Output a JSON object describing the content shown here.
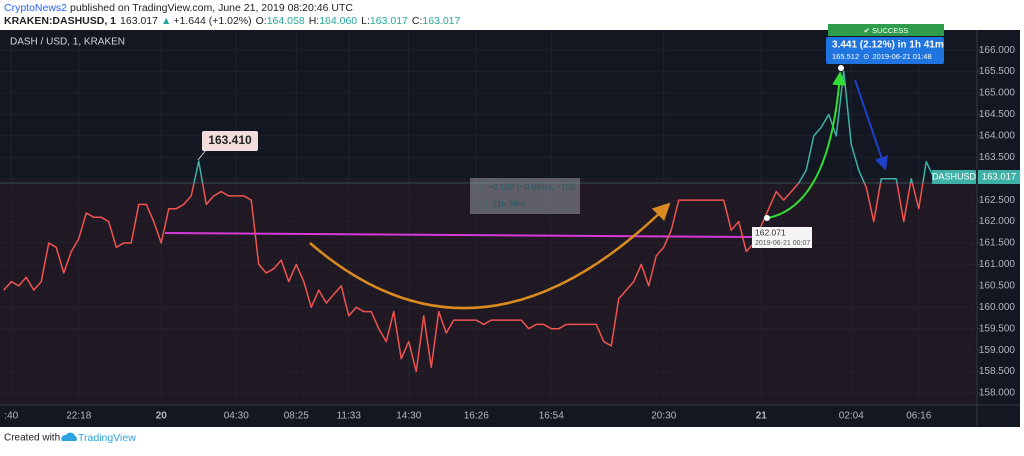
{
  "header": {
    "author": "CryptoNews2",
    "published": "published on TradingView.com, June 21, 2019 08:20:46 UTC",
    "symbol": "KRAKEN:DASHUSD, 1",
    "last": "163.017",
    "arrow": "▲",
    "change": "+1.644 (+1.02%)",
    "ohlc": [
      {
        "label": "O:",
        "value": "164.058"
      },
      {
        "label": "H:",
        "value": "164.060"
      },
      {
        "label": "L:",
        "value": "163.017"
      },
      {
        "label": "C:",
        "value": "163.017"
      }
    ]
  },
  "chart_data": {
    "type": "line",
    "title": "DASH / USD, 1, KRAKEN",
    "categories": [
      null,
      ":40",
      null,
      null,
      null,
      null,
      null,
      null,
      null,
      null,
      "22:18",
      null,
      null,
      null,
      null,
      null,
      null,
      null,
      null,
      null,
      null,
      "20",
      null,
      null,
      null,
      null,
      null,
      null,
      null,
      null,
      null,
      "04:30",
      null,
      null,
      null,
      null,
      null,
      null,
      null,
      "08:25",
      null,
      null,
      null,
      null,
      null,
      null,
      "11:33",
      null,
      null,
      null,
      null,
      null,
      null,
      null,
      "14:30",
      null,
      null,
      null,
      null,
      null,
      null,
      null,
      null,
      "16:26",
      null,
      null,
      null,
      null,
      null,
      null,
      null,
      null,
      null,
      "16:54",
      null,
      null,
      null,
      null,
      null,
      null,
      null,
      null,
      null,
      null,
      null,
      null,
      null,
      null,
      "20:30",
      null,
      null,
      null,
      null,
      null,
      null,
      null,
      null,
      null,
      null,
      null,
      null,
      "21",
      null,
      null,
      null,
      null,
      null,
      null,
      null,
      null,
      null,
      null,
      null,
      "02:04",
      null,
      null,
      null,
      null,
      null,
      null,
      null,
      null,
      "06:16",
      null,
      null,
      null,
      null,
      null,
      null,
      null
    ],
    "series": [
      {
        "name": "DASHUSD",
        "color": "#ef5350",
        "up_color": "#3fb0a5",
        "values": [
          160.4,
          160.6,
          160.5,
          160.7,
          160.4,
          160.6,
          161.5,
          161.4,
          160.8,
          161.3,
          161.6,
          162.2,
          162.1,
          162.1,
          162.0,
          161.4,
          161.5,
          161.5,
          162.4,
          162.4,
          162.0,
          161.5,
          162.3,
          162.3,
          162.4,
          162.6,
          163.41,
          162.4,
          162.6,
          162.7,
          162.6,
          162.6,
          162.6,
          162.5,
          161.0,
          160.8,
          160.9,
          161.1,
          160.6,
          161.0,
          160.6,
          160.0,
          160.4,
          160.1,
          160.3,
          160.5,
          159.8,
          160.0,
          159.9,
          159.9,
          159.5,
          159.2,
          159.9,
          158.8,
          159.2,
          158.5,
          159.8,
          158.6,
          159.9,
          159.4,
          159.7,
          159.7,
          159.7,
          159.7,
          159.6,
          159.7,
          159.7,
          159.7,
          159.7,
          159.7,
          159.5,
          159.6,
          159.6,
          159.5,
          159.5,
          159.6,
          159.6,
          159.6,
          159.6,
          159.6,
          159.2,
          159.1,
          160.2,
          160.4,
          160.6,
          161.0,
          160.5,
          161.2,
          161.4,
          161.8,
          162.5,
          162.5,
          162.5,
          162.5,
          162.5,
          162.5,
          162.5,
          161.8,
          162.0,
          161.3,
          161.5,
          161.9,
          162.3,
          162.7,
          162.5,
          162.7,
          162.9,
          163.2,
          164.0,
          164.2,
          164.5,
          164.0,
          165.512,
          163.8,
          163.2,
          162.8,
          162.0,
          163.0,
          163.0,
          163.0,
          162.0,
          163.0,
          162.3,
          163.4,
          163.017,
          null,
          null,
          null,
          null,
          null
        ]
      }
    ],
    "baseline": 162.9,
    "ylim": [
      157.72,
      166.47
    ],
    "yticks": [
      {
        "value": 158,
        "label": "158.000"
      },
      {
        "value": 158.5,
        "label": "158.500"
      },
      {
        "value": 159,
        "label": "159.000"
      },
      {
        "value": 159.5,
        "label": "159.500"
      },
      {
        "value": 160,
        "label": "160.000"
      },
      {
        "value": 160.5,
        "label": "160.500"
      },
      {
        "value": 161,
        "label": "161.000"
      },
      {
        "value": 161.5,
        "label": "161.500"
      },
      {
        "value": 162,
        "label": "162.000"
      },
      {
        "value": 162.5,
        "label": "162.500"
      },
      {
        "value": 163,
        "label": "163.000"
      },
      {
        "value": 163.5,
        "label": "163.500"
      },
      {
        "value": 164,
        "label": "164.000"
      },
      {
        "value": 164.5,
        "label": "164.500"
      },
      {
        "value": 165,
        "label": "165.000"
      },
      {
        "value": 165.5,
        "label": "165.500"
      },
      {
        "value": 166,
        "label": "166.000"
      }
    ],
    "grid": true,
    "price_label": "163.017",
    "annotations": {
      "peak": "163.410",
      "range_change": "−0.102 (−0.06%), −102",
      "range_time": "21h 38m",
      "start_price": "162.071",
      "start_time": "2019-06-21 00:07",
      "gain": "3.441 (2.12%) in 1h 41m",
      "end_price": "165.512",
      "end_time": "2019-06-21 01:48",
      "status": "✔ SUCCESS"
    }
  },
  "footer": {
    "created": "Created with",
    "brand": "TradingView"
  }
}
